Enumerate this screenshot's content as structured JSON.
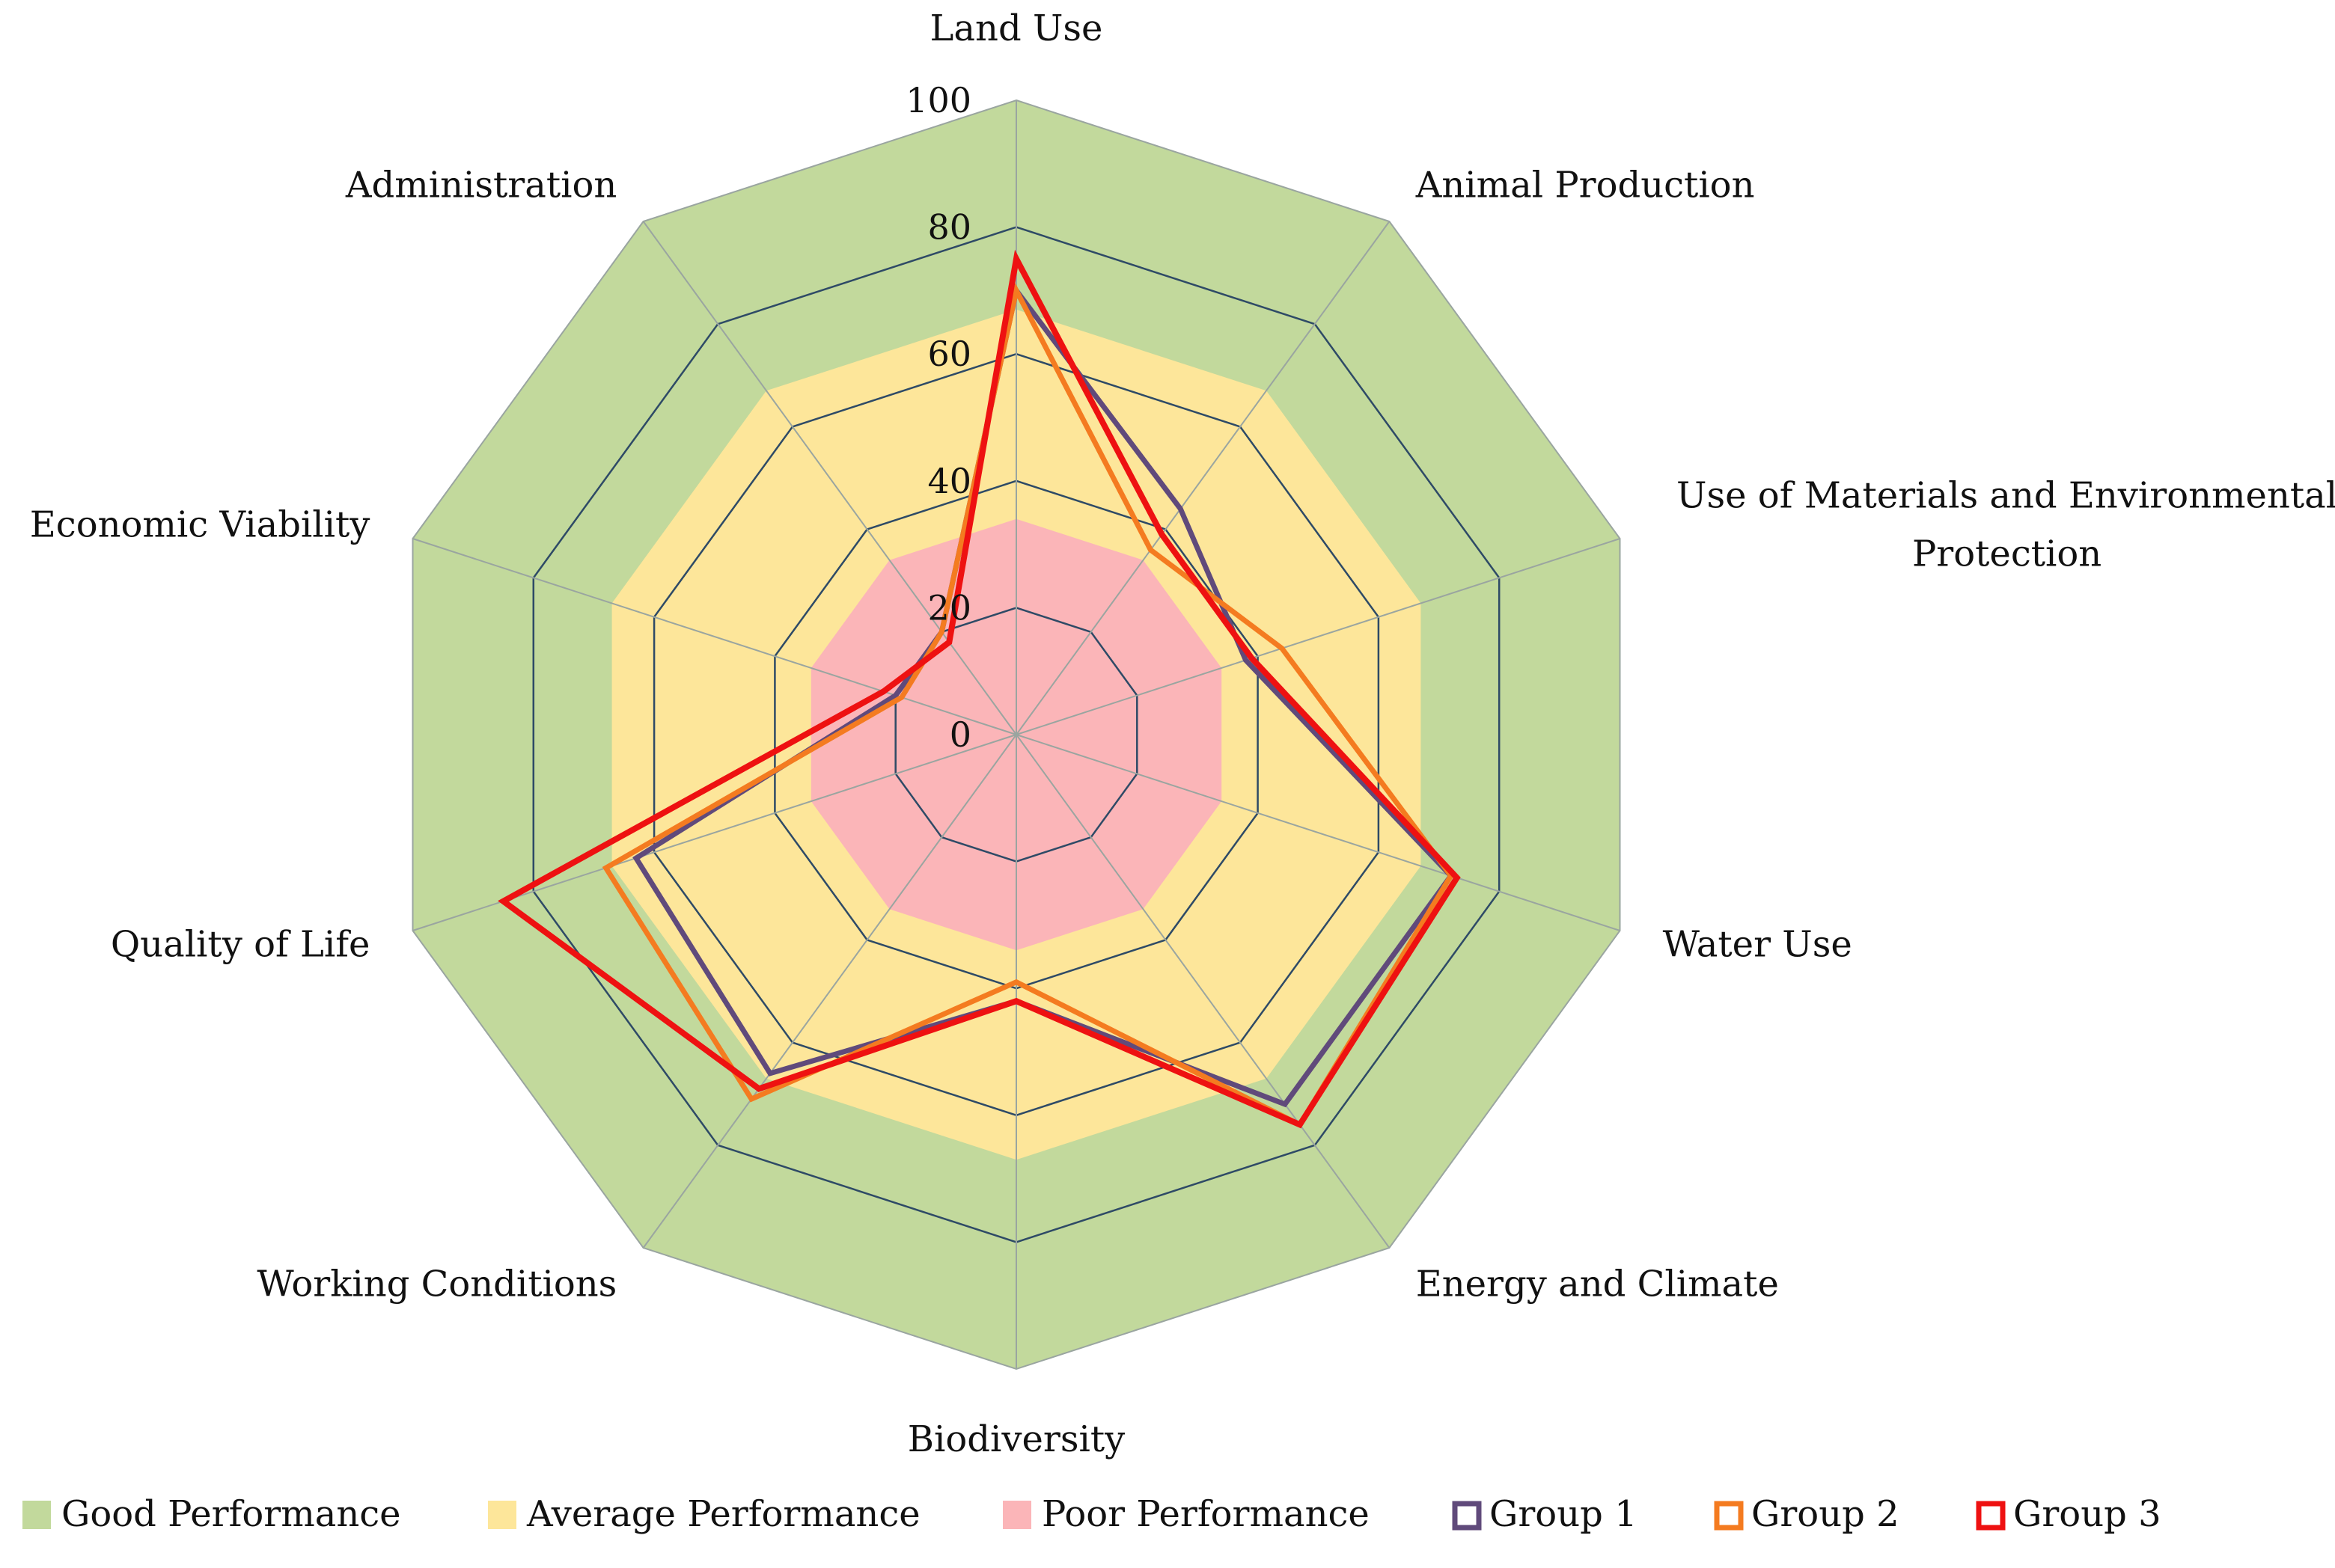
{
  "chart_data": {
    "type": "radar",
    "axes": [
      "Land Use",
      "Animal Production",
      "Use of Materials and Environmental Protection",
      "Water Use",
      "Energy and Climate",
      "Biodiversity",
      "Working Conditions",
      "Quality of Life",
      "Economic Viability",
      "Administration"
    ],
    "axis_label_lines": [
      [
        "Land Use"
      ],
      [
        "Animal Production"
      ],
      [
        "Use of Materials and Environmental",
        "Protection"
      ],
      [
        "Water Use"
      ],
      [
        "Energy and Climate"
      ],
      [
        "Biodiversity"
      ],
      [
        "Working Conditions"
      ],
      [
        "Quality of Life"
      ],
      [
        "Economic Viability"
      ],
      [
        "Administration"
      ]
    ],
    "radial_range": [
      0,
      100
    ],
    "ticks": [
      "0",
      "20",
      "40",
      "60",
      "80",
      "100"
    ],
    "tick_values": [
      0,
      20,
      40,
      60,
      80,
      100
    ],
    "bands": [
      {
        "name": "Good Performance",
        "from": 67,
        "to": 100,
        "color": "#c2d99c"
      },
      {
        "name": "Average Performance",
        "from": 34,
        "to": 67,
        "color": "#fde69a"
      },
      {
        "name": "Poor Performance",
        "from": 0,
        "to": 34,
        "color": "#fbb5b8"
      }
    ],
    "series": [
      {
        "name": "Group 1",
        "color": "#604a7b",
        "values": [
          70,
          44,
          38,
          72,
          72,
          42,
          66,
          63,
          20,
          20
        ]
      },
      {
        "name": "Group 2",
        "color": "#f47b20",
        "values": [
          70,
          36,
          44,
          72,
          76,
          39,
          71,
          68,
          19,
          20
        ]
      },
      {
        "name": "Group 3",
        "color": "#ee1111",
        "values": [
          75,
          39,
          39,
          73,
          76,
          42,
          69,
          85,
          22,
          18
        ]
      }
    ],
    "legend_position": "bottom",
    "grid": true
  }
}
